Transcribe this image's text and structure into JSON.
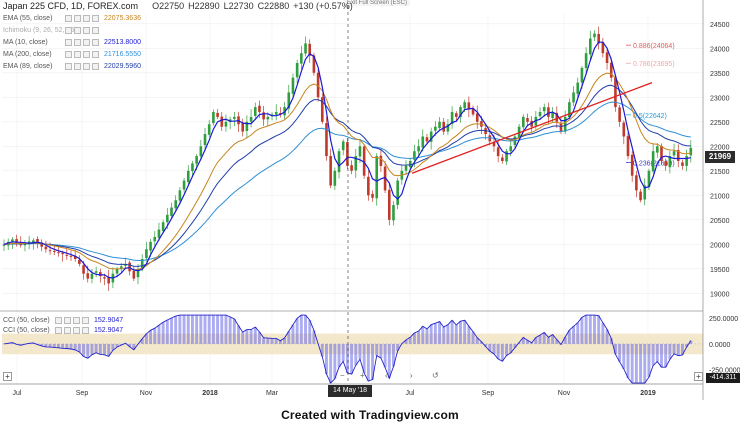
{
  "app": {
    "fullscreen_hint": "Exit Full Screen (ESC)"
  },
  "legend": {
    "symbol": "Japan 225 CFD, 1D, FOREX.com",
    "quote": {
      "o": "O22750",
      "h": "H22890",
      "l": "L22730",
      "c": "C22880",
      "chg": "+130 (+0.57%)"
    },
    "indicators": [
      {
        "name": "EMA (55, close)",
        "value": "22075.3636",
        "color": "#c8841c"
      },
      {
        "name": "Ichimoku (9, 26, 52, 26)",
        "value": "",
        "color": "#999999"
      },
      {
        "name": "MA (10, close)",
        "value": "22513.8000",
        "color": "#1a1ad6"
      },
      {
        "name": "MA (200, close)",
        "value": "21716.5550",
        "color": "#2f8fd6"
      },
      {
        "name": "EMA (89, close)",
        "value": "22029.5960",
        "color": "#1f3ea8"
      }
    ]
  },
  "cci_legend": [
    {
      "name": "CCI (50, close)",
      "value": "152.9047"
    },
    {
      "name": "CCI (50, close)",
      "value": "152.9047"
    }
  ],
  "price_axis": {
    "ticks": [
      "24500",
      "24000",
      "23500",
      "23000",
      "22500",
      "22000",
      "21500",
      "21000",
      "20500",
      "20000",
      "19500",
      "19000"
    ],
    "last_price": "21969"
  },
  "cci_axis": {
    "ticks": [
      "250.0000",
      "0.0000",
      "-250.0000"
    ],
    "last": "-414.311"
  },
  "time_axis": {
    "ticks": [
      "Jul",
      "Sep",
      "Nov",
      "2018",
      "Mar",
      "May",
      "Jul",
      "Sep",
      "Nov",
      "2019"
    ],
    "crosshair_label": "14 May '18"
  },
  "fib_levels": [
    {
      "label": "0.886(24064)",
      "color": "#e35b5b"
    },
    {
      "label": "0.786(23695)",
      "color": "#f0a8a8"
    },
    {
      "label": "0.5(22642)",
      "color": "#2a9fd6"
    },
    {
      "label": "0.236(21669)",
      "color": "#3a3ad0"
    }
  ],
  "nav_controls": [
    "−",
    "+",
    "‹",
    "›",
    "↺"
  ],
  "footer": {
    "text": "Created with Tradingview.com"
  },
  "colors": {
    "up": "#2e9e3e",
    "down": "#c0392b",
    "trendline": "#e02020",
    "ma10": "#1a1ad6",
    "ema55": "#c8841c",
    "ma200": "#2f8fd6",
    "ema89": "#1f3ea8",
    "cci": "#2222cc",
    "cci_band": "#f3e7cc"
  },
  "chart_data": {
    "type": "candlestick",
    "price_range": [
      18700,
      24700
    ],
    "closes": [
      20000,
      20050,
      20100,
      20030,
      19980,
      20020,
      20060,
      20080,
      20010,
      19950,
      19900,
      19880,
      19860,
      19830,
      19800,
      19780,
      19750,
      19700,
      19600,
      19400,
      19300,
      19400,
      19450,
      19350,
      19300,
      19200,
      19400,
      19500,
      19550,
      19600,
      19450,
      19300,
      19500,
      19700,
      19900,
      20050,
      20150,
      20300,
      20450,
      20600,
      20750,
      20900,
      21100,
      21300,
      21500,
      21650,
      21800,
      22000,
      22250,
      22450,
      22700,
      22600,
      22400,
      22500,
      22550,
      22600,
      22450,
      22300,
      22500,
      22600,
      22800,
      22700,
      22550,
      22600,
      22650,
      22700,
      22650,
      22800,
      23100,
      23400,
      23700,
      23900,
      24100,
      23850,
      23500,
      23000,
      22500,
      21800,
      21200,
      21500,
      21900,
      22100,
      21600,
      21500,
      21800,
      22000,
      21400,
      21000,
      20950,
      21800,
      21600,
      21100,
      20500,
      20800,
      21300,
      21500,
      21600,
      21700,
      21900,
      22000,
      22200,
      22100,
      22300,
      22400,
      22500,
      22300,
      22450,
      22700,
      22600,
      22800,
      22900,
      22750,
      22650,
      22500,
      22400,
      22250,
      22100,
      22000,
      21800,
      21700,
      21900,
      22000,
      22200,
      22400,
      22600,
      22500,
      22400,
      22600,
      22700,
      22800,
      22600,
      22700,
      22500,
      22300,
      22600,
      22900,
      23100,
      23300,
      23600,
      23900,
      24200,
      24300,
      24100,
      23900,
      23700,
      23400,
      22800,
      22500,
      22200,
      21800,
      21400,
      21100,
      20900,
      21200,
      21500,
      21900,
      22000,
      21700,
      21600,
      21800,
      21900,
      21700,
      21600,
      21800,
      21969
    ]
  }
}
